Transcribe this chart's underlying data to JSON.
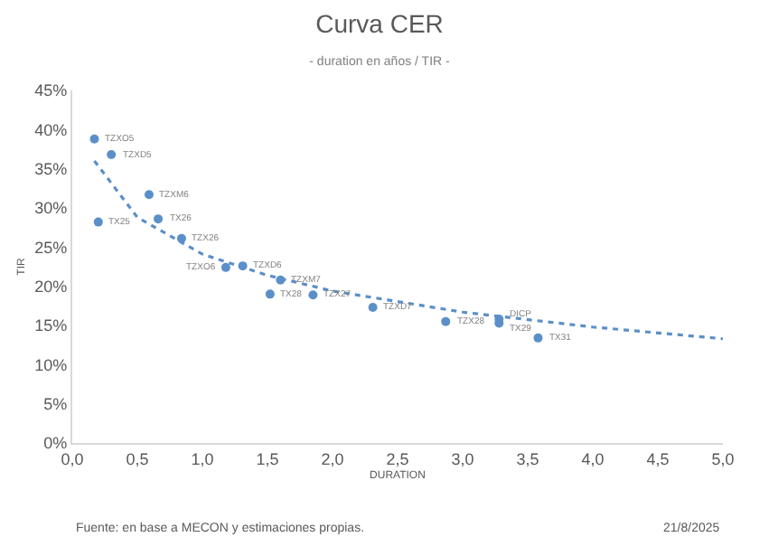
{
  "chart_data": {
    "type": "scatter",
    "title": "Curva CER",
    "subtitle": "- duration en años / TIR -",
    "xlabel": "DURATION",
    "ylabel": "TIR",
    "xlim": [
      0,
      5
    ],
    "xticks": [
      {
        "value": 0,
        "label": "0,0"
      },
      {
        "value": 0.5,
        "label": "0,5"
      },
      {
        "value": 1,
        "label": "1,0"
      },
      {
        "value": 1.5,
        "label": "1,5"
      },
      {
        "value": 2,
        "label": "2,0"
      },
      {
        "value": 2.5,
        "label": "2,5"
      },
      {
        "value": 3,
        "label": "3,0"
      },
      {
        "value": 3.5,
        "label": "3,5"
      },
      {
        "value": 4,
        "label": "4,0"
      },
      {
        "value": 4.5,
        "label": "4,5"
      },
      {
        "value": 5,
        "label": "5,0"
      }
    ],
    "ylim": [
      0,
      45
    ],
    "yticks": [
      {
        "value": 0,
        "label": "0%"
      },
      {
        "value": 5,
        "label": "5%"
      },
      {
        "value": 10,
        "label": "10%"
      },
      {
        "value": 15,
        "label": "15%"
      },
      {
        "value": 20,
        "label": "20%"
      },
      {
        "value": 25,
        "label": "25%"
      },
      {
        "value": 30,
        "label": "30%"
      },
      {
        "value": 35,
        "label": "35%"
      },
      {
        "value": 40,
        "label": "40%"
      },
      {
        "value": 45,
        "label": "45%"
      }
    ],
    "grid": false,
    "legend": false,
    "marker": "circle",
    "series": [
      {
        "color": "#5b8fc9",
        "x": [
          0.17,
          0.3,
          0.59,
          0.66,
          0.2,
          0.84,
          1.18,
          1.31,
          1.6,
          1.52,
          1.85,
          2.31,
          2.87,
          3.28,
          3.28,
          3.58
        ],
        "values": [
          38.8,
          36.8,
          31.7,
          28.6,
          28.2,
          26.1,
          22.4,
          22.6,
          20.8,
          19.0,
          18.9,
          17.3,
          15.5,
          15.8,
          15.3,
          13.4
        ]
      },
      {
        "type": "line",
        "color": "#5b8fc9",
        "line_style": "dotted",
        "marker": "none",
        "x": [
          0.17,
          0.5,
          1.0,
          1.5,
          2.0,
          3.0,
          4.0,
          5.0
        ],
        "values": [
          36.0,
          28.8,
          24.1,
          21.4,
          19.4,
          16.7,
          14.8,
          13.3
        ]
      }
    ],
    "annotations": [
      {
        "text": "TZXO5",
        "x": 0.17,
        "y": 38.8
      },
      {
        "text": "TZXD5",
        "x": 0.3,
        "y": 36.8
      },
      {
        "text": "TZXM6",
        "x": 0.59,
        "y": 31.7
      },
      {
        "text": "TX26",
        "x": 0.66,
        "y": 28.6
      },
      {
        "text": "TX25",
        "x": 0.2,
        "y": 28.2
      },
      {
        "text": "TZX26",
        "x": 0.84,
        "y": 26.1
      },
      {
        "text": "TZXO6",
        "x": 1.18,
        "y": 22.4
      },
      {
        "text": "TZXD6",
        "x": 1.31,
        "y": 22.6
      },
      {
        "text": "TZXM7",
        "x": 1.6,
        "y": 20.8
      },
      {
        "text": "TX28",
        "x": 1.52,
        "y": 19.0
      },
      {
        "text": "TZX27",
        "x": 1.85,
        "y": 18.9
      },
      {
        "text": "TZXD7",
        "x": 2.31,
        "y": 17.3
      },
      {
        "text": "TZX28",
        "x": 2.87,
        "y": 15.5
      },
      {
        "text": "DICP",
        "x": 3.28,
        "y": 15.8
      },
      {
        "text": "TX29",
        "x": 3.28,
        "y": 15.3
      },
      {
        "text": "TX31",
        "x": 3.58,
        "y": 13.4
      },
      "Fuente: en base a MECON y estimaciones propias.",
      "21/8/2025"
    ]
  }
}
